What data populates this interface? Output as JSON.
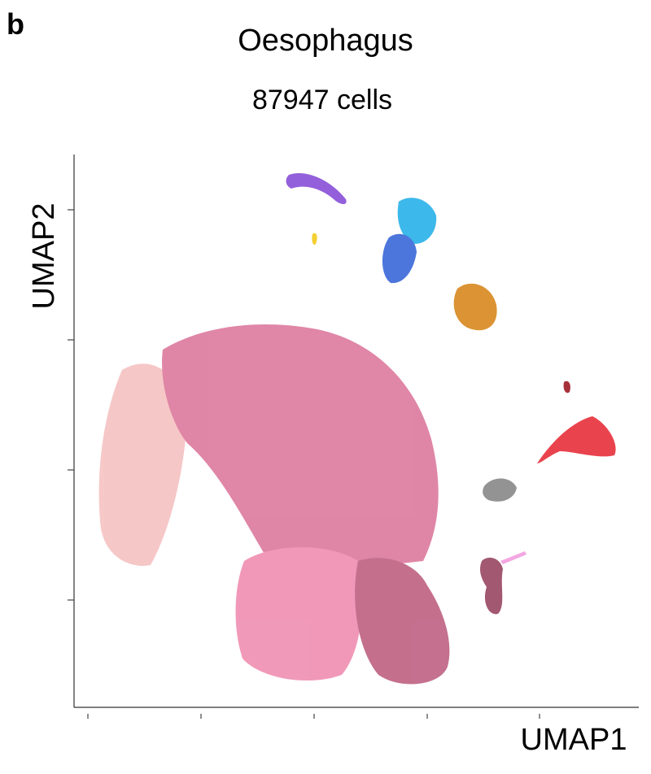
{
  "figure": {
    "panel_label": "b",
    "title": "Oesophagus",
    "subtitle": "87947 cells",
    "x_label": "UMAP1",
    "y_label": "UMAP2"
  }
}
